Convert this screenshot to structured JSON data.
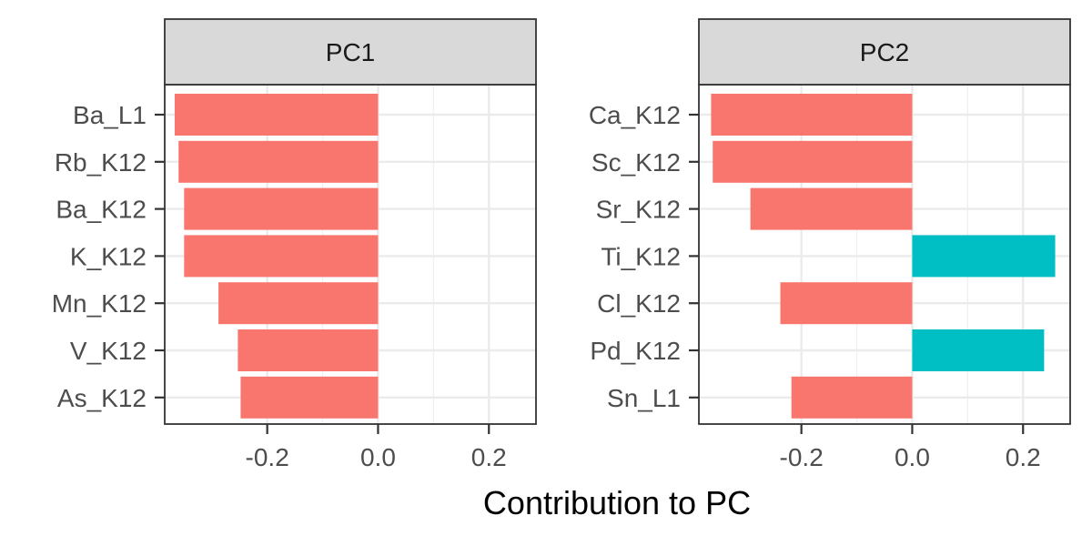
{
  "chart_data": {
    "type": "bar",
    "orientation": "horizontal",
    "xlabel": "Contribution to PC",
    "ylabel": "",
    "xlim": [
      -0.385,
      0.285
    ],
    "x_ticks": [
      -0.2,
      0.0,
      0.2
    ],
    "x_tick_labels": [
      "-0.2",
      "0.0",
      "0.2"
    ],
    "grid": true,
    "legend": "none",
    "colors": {
      "negative": "#F8766D",
      "positive": "#00BFC4"
    },
    "panels": [
      {
        "title": "PC1",
        "categories": [
          "Ba_L1",
          "Rb_K12",
          "Ba_K12",
          "K_K12",
          "Mn_K12",
          "V_K12",
          "As_K12"
        ],
        "values": [
          -0.367,
          -0.36,
          -0.35,
          -0.35,
          -0.288,
          -0.253,
          -0.248
        ]
      },
      {
        "title": "PC2",
        "categories": [
          "Ca_K12",
          "Sc_K12",
          "Sr_K12",
          "Ti_K12",
          "Cl_K12",
          "Pd_K12",
          "Sn_L1"
        ],
        "values": [
          -0.363,
          -0.36,
          -0.292,
          0.258,
          -0.238,
          0.238,
          -0.218
        ]
      }
    ]
  }
}
